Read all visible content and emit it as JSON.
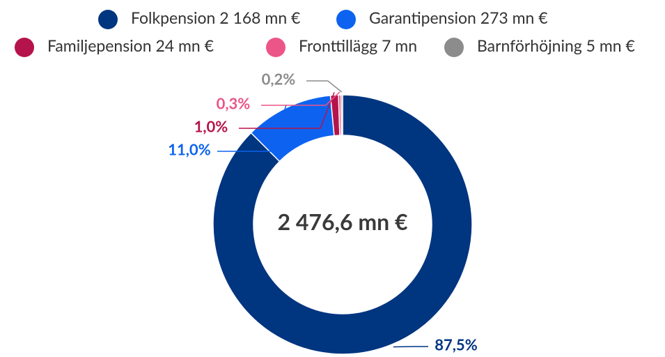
{
  "chart_data": {
    "type": "donut",
    "categories": [
      "Folkpension 2 168 mn €",
      "Garantipension 273 mn €",
      "Familjepension 24 mn €",
      "Fronttillägg 7 mn",
      "Barnförhöjning 5 mn €"
    ],
    "values": [
      87.5,
      11.0,
      1.0,
      0.3,
      0.2
    ],
    "value_labels": [
      "87,5%",
      "11,0%",
      "1,0%",
      "0,3%",
      "0,2%"
    ],
    "colors": [
      "#003580",
      "#0d63f0",
      "#b5134b",
      "#ec5588",
      "#8c8c8c"
    ],
    "center_text": "2 476,6 mn €"
  }
}
